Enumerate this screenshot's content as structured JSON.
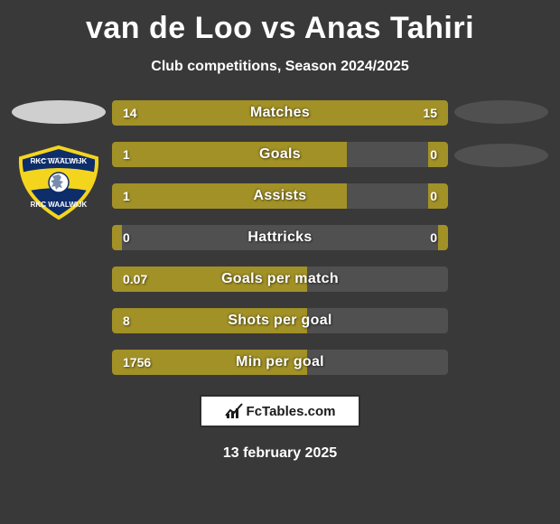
{
  "title": "van de Loo vs Anas Tahiri",
  "subtitle": "Club competitions, Season 2024/2025",
  "date": "13 february 2025",
  "footer_brand": "FcTables.com",
  "colors": {
    "background": "#3a3939",
    "track": "#515050",
    "player1": "#a29126",
    "player2": "#a29126",
    "oval_left": "#cfcfcf",
    "oval_right": "#515050",
    "text": "#ffffff"
  },
  "rows": [
    {
      "label": "Matches",
      "left_val": "14",
      "right_val": "15",
      "left_pct": 48,
      "right_pct": 52
    },
    {
      "label": "Goals",
      "left_val": "1",
      "right_val": "0",
      "left_pct": 70,
      "right_pct": 6
    },
    {
      "label": "Assists",
      "left_val": "1",
      "right_val": "0",
      "left_pct": 70,
      "right_pct": 6
    },
    {
      "label": "Hattricks",
      "left_val": "0",
      "right_val": "0",
      "left_pct": 3,
      "right_pct": 3
    },
    {
      "label": "Goals per match",
      "left_val": "0.07",
      "right_val": "",
      "left_pct": 58,
      "right_pct": 0
    },
    {
      "label": "Shots per goal",
      "left_val": "8",
      "right_val": "",
      "left_pct": 58,
      "right_pct": 0
    },
    {
      "label": "Min per goal",
      "left_val": "1756",
      "right_val": "",
      "left_pct": 58,
      "right_pct": 0
    }
  ]
}
